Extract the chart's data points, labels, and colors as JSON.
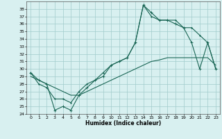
{
  "xlabel": "Humidex (Indice chaleur)",
  "xlim": [
    -0.5,
    23.5
  ],
  "ylim": [
    24,
    39
  ],
  "yticks": [
    24,
    25,
    26,
    27,
    28,
    29,
    30,
    31,
    32,
    33,
    34,
    35,
    36,
    37,
    38
  ],
  "xticks": [
    0,
    1,
    2,
    3,
    4,
    5,
    6,
    7,
    8,
    9,
    10,
    11,
    12,
    13,
    14,
    15,
    16,
    17,
    18,
    19,
    20,
    21,
    22,
    23
  ],
  "bg_color": "#d8f0f0",
  "grid_color": "#a0cccc",
  "line_color": "#1a6655",
  "y_main": [
    29.5,
    28.5,
    28.0,
    24.5,
    25.0,
    24.5,
    26.5,
    27.5,
    28.5,
    29.0,
    30.5,
    31.0,
    31.5,
    33.5,
    38.5,
    37.5,
    36.5,
    36.5,
    36.0,
    35.5,
    33.5,
    30.0,
    33.5,
    30.0
  ],
  "y_upper": [
    29.5,
    28.0,
    27.5,
    26.0,
    26.0,
    25.5,
    27.0,
    28.0,
    28.5,
    29.5,
    30.5,
    31.0,
    31.5,
    33.5,
    38.5,
    37.0,
    36.5,
    36.5,
    36.5,
    35.5,
    35.5,
    34.5,
    33.5,
    30.0
  ],
  "y_lower": [
    29.0,
    28.5,
    28.0,
    27.5,
    27.0,
    26.5,
    26.5,
    27.0,
    27.5,
    28.0,
    28.5,
    29.0,
    29.5,
    30.0,
    30.5,
    31.0,
    31.2,
    31.5,
    31.5,
    31.5,
    31.5,
    31.5,
    31.5,
    30.5
  ]
}
